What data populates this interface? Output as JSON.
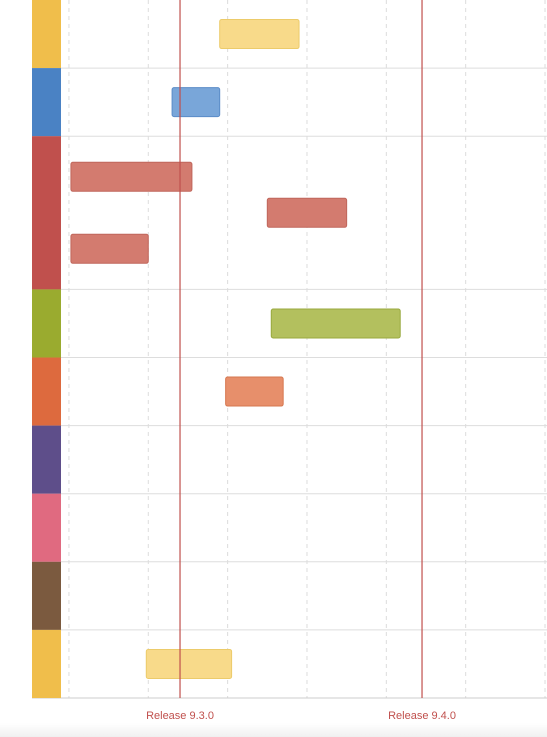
{
  "chart_data": {
    "type": "bar",
    "subtype": "timeline-gantt",
    "title": "",
    "xlabel": "",
    "ylabel": "",
    "grid": true,
    "x_unit": "week",
    "xlim": [
      0,
      12.25
    ],
    "milestones": [
      {
        "label": "Release 9.3.0",
        "x": 3.0,
        "color": "#c0504d"
      },
      {
        "label": "Release 9.4.0",
        "x": 9.1,
        "color": "#c0504d"
      }
    ],
    "lanes": [
      {
        "color": "#f0be4b",
        "bar_color": "#f8da8a",
        "bar_stroke": "#eccb6a",
        "rows": 1,
        "tasks": [
          {
            "start": 4.0,
            "end": 6.0,
            "row": 0
          }
        ]
      },
      {
        "color": "#4a82c4",
        "bar_color": "#79a6d9",
        "bar_stroke": "#5b8cc8",
        "rows": 1,
        "tasks": [
          {
            "start": 2.8,
            "end": 4.0,
            "row": 0
          }
        ]
      },
      {
        "color": "#c0504d",
        "bar_color": "#d37b6f",
        "bar_stroke": "#c0665b",
        "rows": 3,
        "tasks": [
          {
            "start": 0.25,
            "end": 3.3,
            "row": 0
          },
          {
            "start": 5.2,
            "end": 7.2,
            "row": 1
          },
          {
            "start": 0.25,
            "end": 2.2,
            "row": 2
          }
        ]
      },
      {
        "color": "#9aab2f",
        "bar_color": "#b3c05e",
        "bar_stroke": "#98a93e",
        "rows": 1,
        "tasks": [
          {
            "start": 5.3,
            "end": 8.55,
            "row": 0
          }
        ]
      },
      {
        "color": "#dd6a3e",
        "bar_color": "#e78f6b",
        "bar_stroke": "#d6774f",
        "rows": 1,
        "tasks": [
          {
            "start": 4.15,
            "end": 5.6,
            "row": 0
          }
        ]
      },
      {
        "color": "#5e4e8a",
        "bar_color": "#8b7db3",
        "bar_stroke": "#6c5d99",
        "rows": 1,
        "tasks": []
      },
      {
        "color": "#e06a80",
        "bar_color": "#eb97a5",
        "bar_stroke": "#d9788a",
        "rows": 1,
        "tasks": []
      },
      {
        "color": "#7b5a3f",
        "bar_color": "#a68769",
        "bar_stroke": "#8a6a4f",
        "rows": 1,
        "tasks": []
      },
      {
        "color": "#f0be4b",
        "bar_color": "#f8da8a",
        "bar_stroke": "#eccb6a",
        "rows": 1,
        "tasks": [
          {
            "start": 2.15,
            "end": 4.3,
            "row": 0
          }
        ]
      }
    ]
  }
}
